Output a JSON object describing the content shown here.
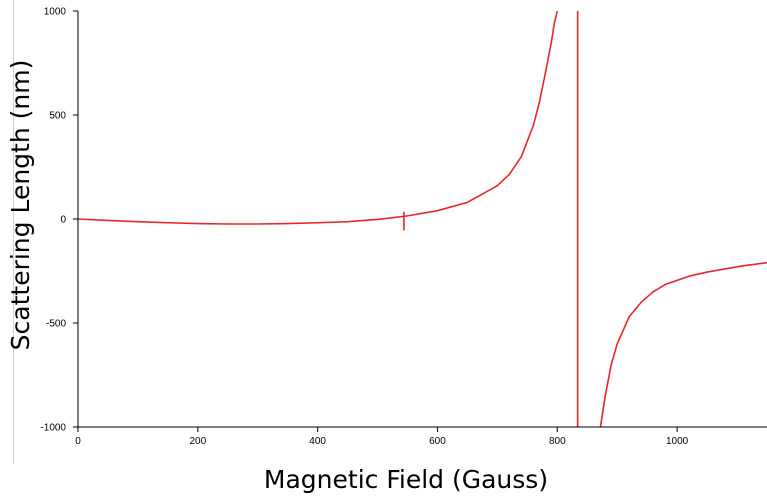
{
  "chart_data": {
    "type": "line",
    "title": "",
    "xlabel": "Magnetic Field (Gauss)",
    "ylabel": "Scattering Length (nm)",
    "xlim": [
      0,
      1150
    ],
    "ylim": [
      -1000,
      1000
    ],
    "xticks": [
      "0",
      "200",
      "400",
      "600",
      "800",
      "1000"
    ],
    "yticks": [
      "1000",
      "500",
      "0",
      "-500",
      "-1000"
    ],
    "grid": false,
    "legend": "none",
    "line_color": "#e8262a",
    "series": [
      {
        "x": [
          0,
          50,
          100,
          150,
          200,
          250,
          300,
          350,
          400,
          450,
          500,
          550,
          600,
          650,
          700,
          720,
          740,
          760,
          770,
          780,
          790,
          795,
          800
        ],
        "values": [
          0,
          -7,
          -13,
          -18,
          -22,
          -24,
          -24,
          -22,
          -18,
          -13,
          -2,
          15,
          40,
          80,
          160,
          215,
          300,
          450,
          560,
          700,
          850,
          940,
          1000
        ]
      },
      {
        "x": [
          872,
          880,
          890,
          900,
          920,
          940,
          960,
          980,
          1000,
          1020,
          1050,
          1080,
          1110,
          1150
        ],
        "values": [
          -1000,
          -850,
          -700,
          -600,
          -470,
          -400,
          -350,
          -315,
          -295,
          -275,
          -255,
          -240,
          -225,
          -210
        ]
      },
      {
        "x": [
          834,
          834
        ],
        "values": [
          1000,
          -1000
        ]
      },
      {
        "x": [
          544,
          544
        ],
        "values": [
          -55,
          35
        ]
      }
    ]
  }
}
